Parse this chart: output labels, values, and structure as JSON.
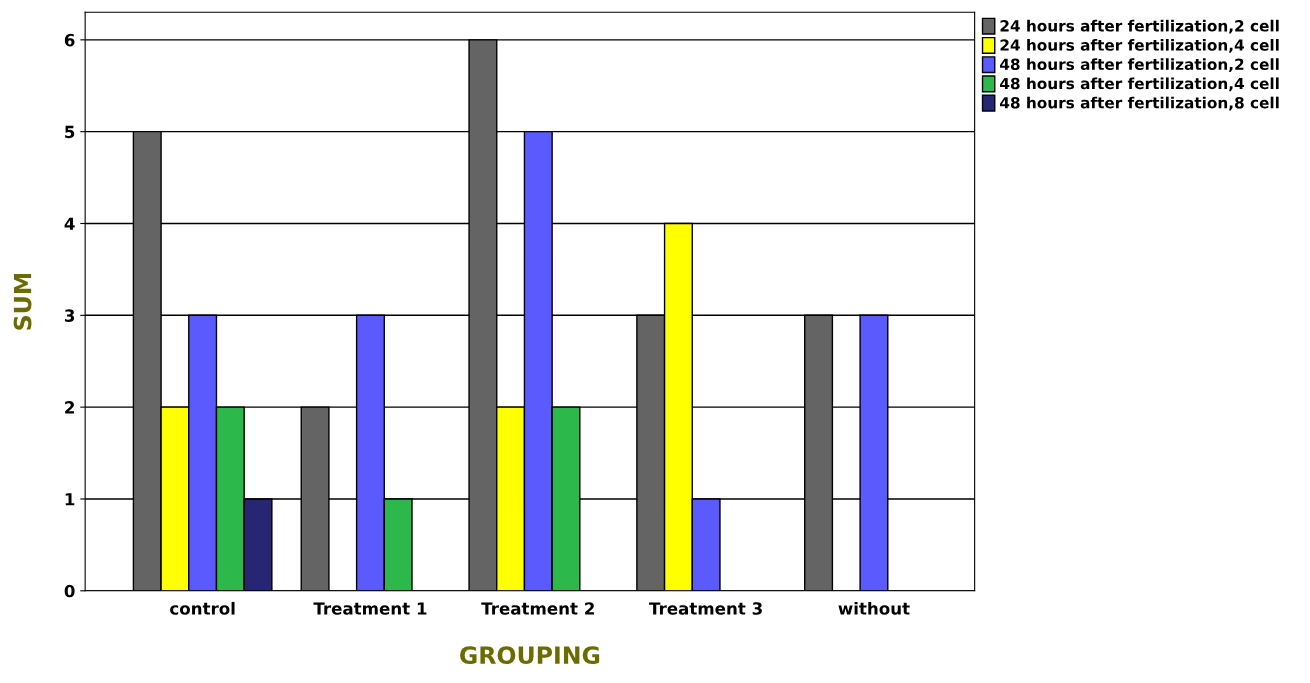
{
  "chart_data": {
    "type": "bar",
    "xlabel": "GROUPING",
    "ylabel": "SUM",
    "categories": [
      "control",
      "Treatment 1",
      "Treatment 2",
      "Treatment 3",
      "without"
    ],
    "series": [
      {
        "name": "24 hours after fertilization,2 cell",
        "color": "#646464",
        "values": [
          5,
          2,
          6,
          3,
          3
        ]
      },
      {
        "name": "24 hours after fertilization,4 cell",
        "color": "#ffff00",
        "values": [
          2,
          null,
          2,
          4,
          null
        ]
      },
      {
        "name": "48 hours after fertilization,2 cell",
        "color": "#5a5aff",
        "values": [
          3,
          3,
          5,
          1,
          3
        ]
      },
      {
        "name": "48 hours after fertilization,4 cell",
        "color": "#2db84b",
        "values": [
          2,
          1,
          2,
          null,
          null
        ]
      },
      {
        "name": "48 hours after fertilization,8 cell",
        "color": "#262673",
        "values": [
          1,
          null,
          null,
          null,
          null
        ]
      }
    ],
    "ylim": [
      0,
      6.3
    ],
    "yticks": [
      0,
      1,
      2,
      3,
      4,
      5,
      6
    ],
    "grid": "y",
    "legend": "top right"
  }
}
